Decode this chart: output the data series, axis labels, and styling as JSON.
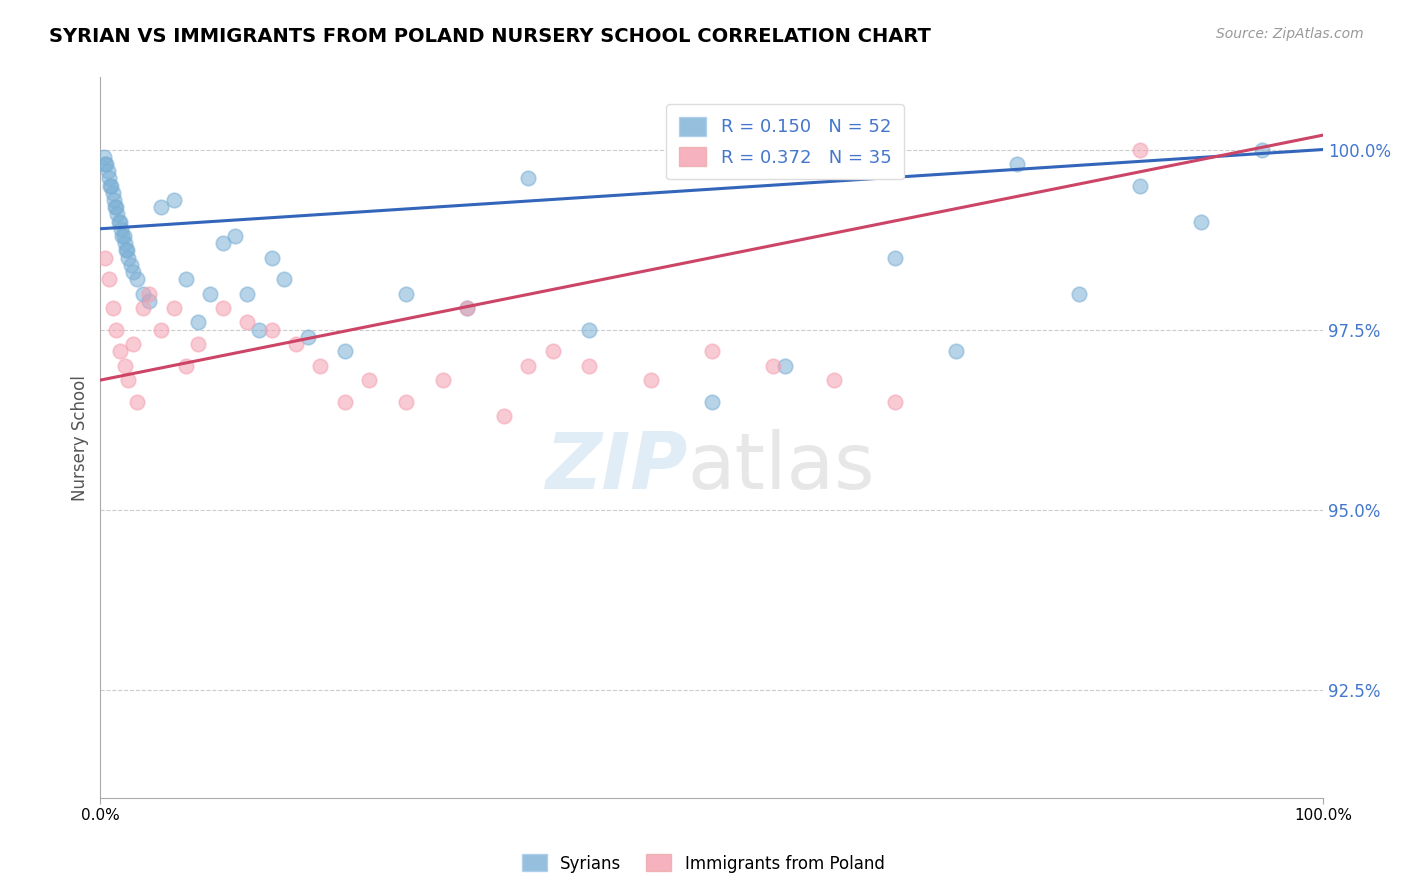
{
  "title": "SYRIAN VS IMMIGRANTS FROM POLAND NURSERY SCHOOL CORRELATION CHART",
  "source": "Source: ZipAtlas.com",
  "ylabel": "Nursery School",
  "yticks": [
    92.5,
    95.0,
    97.5,
    100.0
  ],
  "ytick_labels": [
    "92.5%",
    "95.0%",
    "97.5%",
    "100.0%"
  ],
  "xlim": [
    0.0,
    100.0
  ],
  "ylim": [
    91.0,
    101.0
  ],
  "legend_blue_label": "R = 0.150   N = 52",
  "legend_pink_label": "R = 0.372   N = 35",
  "legend_syrians": "Syrians",
  "legend_poland": "Immigrants from Poland",
  "blue_color": "#7bafd4",
  "pink_color": "#f4a0b0",
  "blue_line_color": "#3366bb",
  "pink_line_color": "#cc4466",
  "blue_line_x0": 0.0,
  "blue_line_y0": 98.9,
  "blue_line_x1": 100.0,
  "blue_line_y1": 100.0,
  "pink_line_x0": 0.0,
  "pink_line_y0": 96.8,
  "pink_line_x1": 100.0,
  "pink_line_y1": 100.2,
  "blue_x": [
    0.3,
    0.4,
    0.5,
    0.6,
    0.7,
    0.8,
    0.9,
    1.0,
    1.1,
    1.2,
    1.3,
    1.4,
    1.5,
    1.6,
    1.7,
    1.8,
    1.9,
    2.0,
    2.1,
    2.2,
    2.3,
    2.5,
    2.7,
    3.0,
    3.5,
    4.0,
    5.0,
    6.0,
    7.0,
    8.0,
    9.0,
    10.0,
    11.0,
    12.0,
    13.0,
    14.0,
    15.0,
    17.0,
    20.0,
    25.0,
    30.0,
    35.0,
    40.0,
    50.0,
    56.0,
    65.0,
    70.0,
    75.0,
    80.0,
    85.0,
    90.0,
    95.0
  ],
  "blue_y": [
    99.9,
    99.8,
    99.8,
    99.7,
    99.6,
    99.5,
    99.5,
    99.4,
    99.3,
    99.2,
    99.2,
    99.1,
    99.0,
    99.0,
    98.9,
    98.8,
    98.8,
    98.7,
    98.6,
    98.6,
    98.5,
    98.4,
    98.3,
    98.2,
    98.0,
    97.9,
    99.2,
    99.3,
    98.2,
    97.6,
    98.0,
    98.7,
    98.8,
    98.0,
    97.5,
    98.5,
    98.2,
    97.4,
    97.2,
    98.0,
    97.8,
    99.6,
    97.5,
    96.5,
    97.0,
    98.5,
    97.2,
    99.8,
    98.0,
    99.5,
    99.0,
    100.0
  ],
  "pink_x": [
    0.4,
    0.7,
    1.0,
    1.3,
    1.6,
    2.0,
    2.3,
    2.7,
    3.0,
    3.5,
    4.0,
    5.0,
    6.0,
    7.0,
    8.0,
    10.0,
    12.0,
    14.0,
    16.0,
    18.0,
    20.0,
    22.0,
    25.0,
    28.0,
    30.0,
    33.0,
    35.0,
    37.0,
    40.0,
    45.0,
    50.0,
    55.0,
    60.0,
    65.0,
    85.0
  ],
  "pink_y": [
    98.5,
    98.2,
    97.8,
    97.5,
    97.2,
    97.0,
    96.8,
    97.3,
    96.5,
    97.8,
    98.0,
    97.5,
    97.8,
    97.0,
    97.3,
    97.8,
    97.6,
    97.5,
    97.3,
    97.0,
    96.5,
    96.8,
    96.5,
    96.8,
    97.8,
    96.3,
    97.0,
    97.2,
    97.0,
    96.8,
    97.2,
    97.0,
    96.8,
    96.5,
    100.0
  ]
}
